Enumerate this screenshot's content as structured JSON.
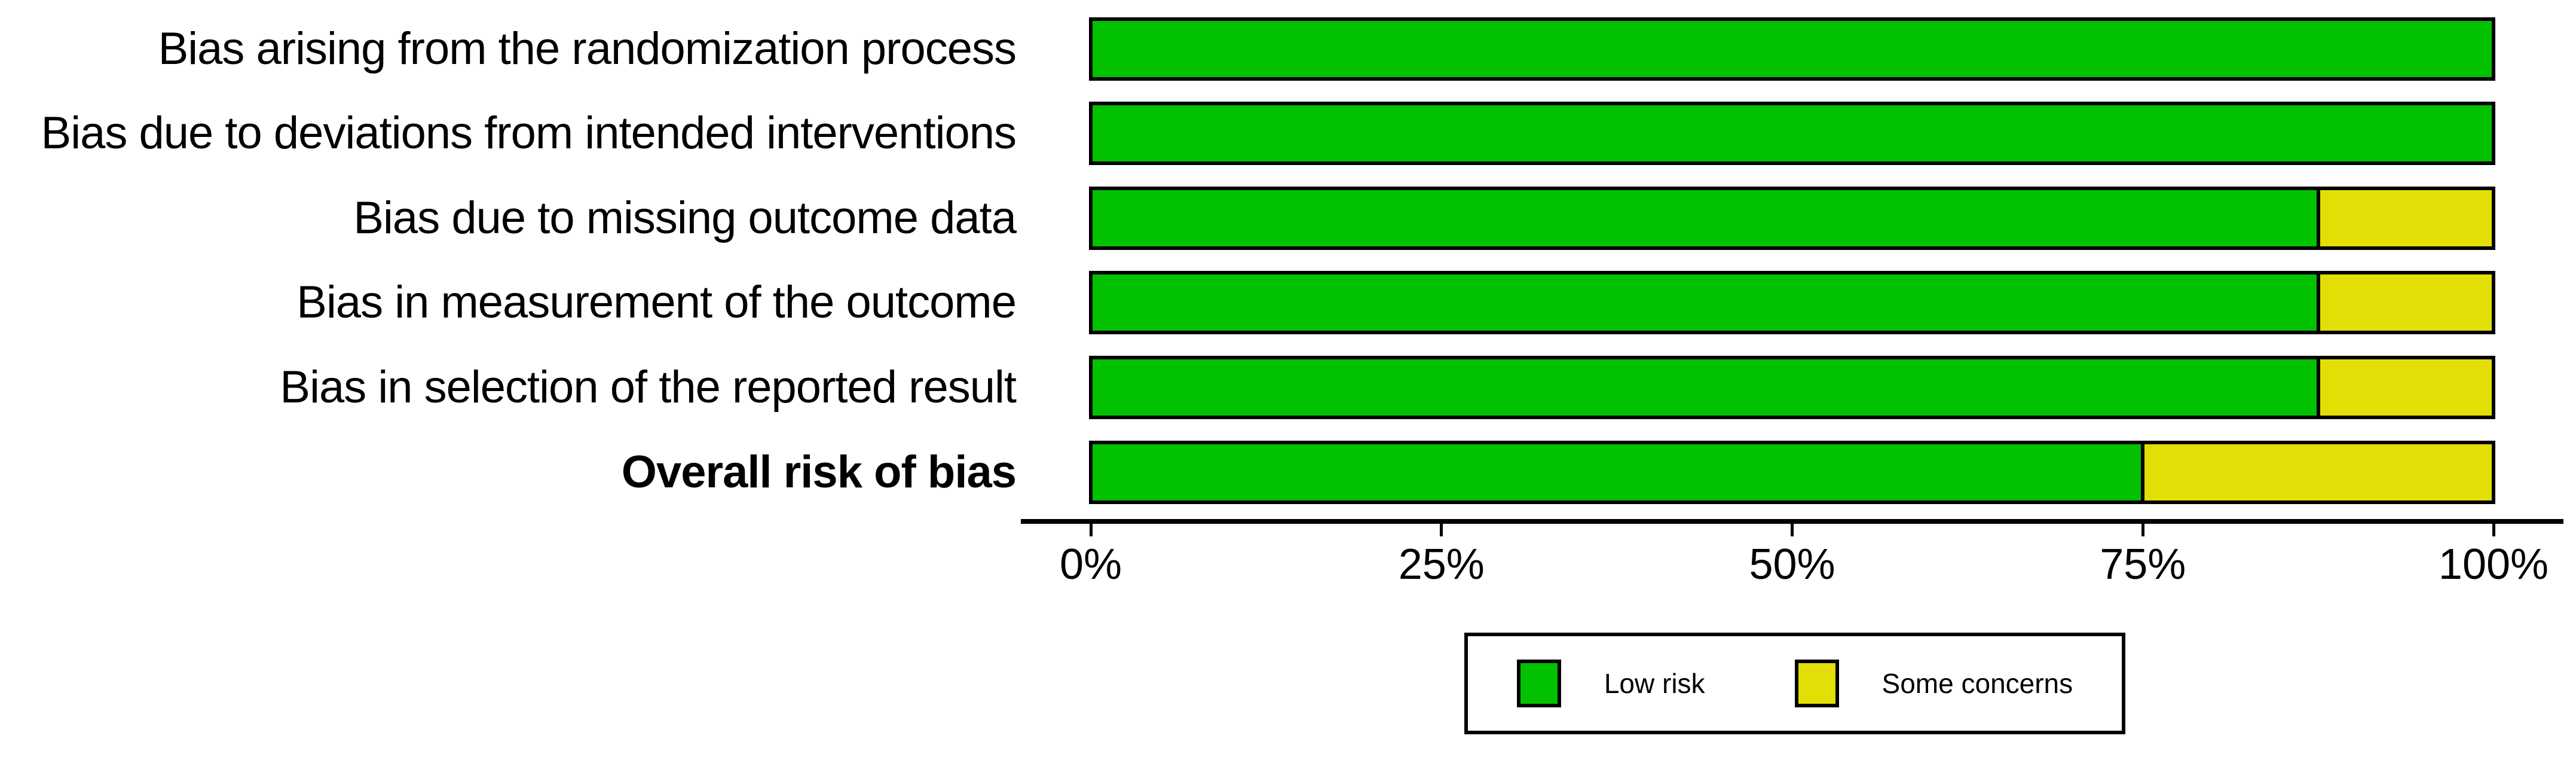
{
  "chart_data": {
    "type": "bar",
    "orientation": "horizontal",
    "stacked": true,
    "title": "",
    "xlabel": "",
    "ylabel": "",
    "xlim": [
      0,
      100
    ],
    "grid": false,
    "legend_position": "bottom",
    "background": "#FFFFFF",
    "bar_border_color": "#000000",
    "categories": [
      "Bias arising from the randomization process",
      "Bias due to deviations from intended interventions",
      "Bias due to missing outcome data",
      "Bias in measurement of the outcome",
      "Bias in selection of the reported result",
      "Overall risk of bias"
    ],
    "bold_category_index": 5,
    "series": [
      {
        "name": "Low risk",
        "color": "#02C100",
        "values": [
          100,
          100,
          87.5,
          87.5,
          87.5,
          75
        ]
      },
      {
        "name": "Some concerns",
        "color": "#E2DF07",
        "values": [
          0,
          0,
          12.5,
          12.5,
          12.5,
          25
        ]
      }
    ],
    "x_tick_labels": [
      "0%",
      "25%",
      "50%",
      "75%",
      "100%"
    ],
    "x_tick_values": [
      0,
      25,
      50,
      75,
      100
    ]
  },
  "legend": {
    "items": [
      {
        "label": "Low risk",
        "color": "#02C100"
      },
      {
        "label": "Some concerns",
        "color": "#E2DF07"
      }
    ]
  }
}
